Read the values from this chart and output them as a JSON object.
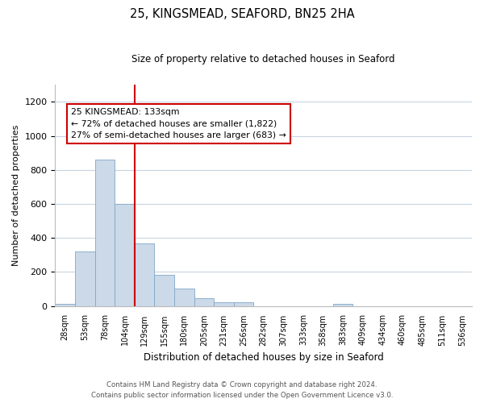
{
  "title": "25, KINGSMEAD, SEAFORD, BN25 2HA",
  "subtitle": "Size of property relative to detached houses in Seaford",
  "xlabel": "Distribution of detached houses by size in Seaford",
  "ylabel": "Number of detached properties",
  "bin_labels": [
    "28sqm",
    "53sqm",
    "78sqm",
    "104sqm",
    "129sqm",
    "155sqm",
    "180sqm",
    "205sqm",
    "231sqm",
    "256sqm",
    "282sqm",
    "307sqm",
    "333sqm",
    "358sqm",
    "383sqm",
    "409sqm",
    "434sqm",
    "460sqm",
    "485sqm",
    "511sqm",
    "536sqm"
  ],
  "bar_heights": [
    10,
    320,
    860,
    600,
    370,
    185,
    100,
    45,
    20,
    20,
    0,
    0,
    0,
    0,
    10,
    0,
    0,
    0,
    0,
    0,
    0
  ],
  "bar_color": "#ccd9e8",
  "bar_edge_color": "#7fa8c8",
  "vline_bin": 3,
  "vline_color": "#cc0000",
  "ylim_max": 1300,
  "yticks": [
    0,
    200,
    400,
    600,
    800,
    1000,
    1200
  ],
  "annotation_line1": "25 KINGSMEAD: 133sqm",
  "annotation_line2": "← 72% of detached houses are smaller (1,822)",
  "annotation_line3": "27% of semi-detached houses are larger (683) →",
  "annotation_box_color": "#ffffff",
  "annotation_box_edge": "#cc0000",
  "footer_line1": "Contains HM Land Registry data © Crown copyright and database right 2024.",
  "footer_line2": "Contains public sector information licensed under the Open Government Licence v3.0.",
  "bg_color": "#ffffff",
  "grid_color": "#c8d4e0"
}
